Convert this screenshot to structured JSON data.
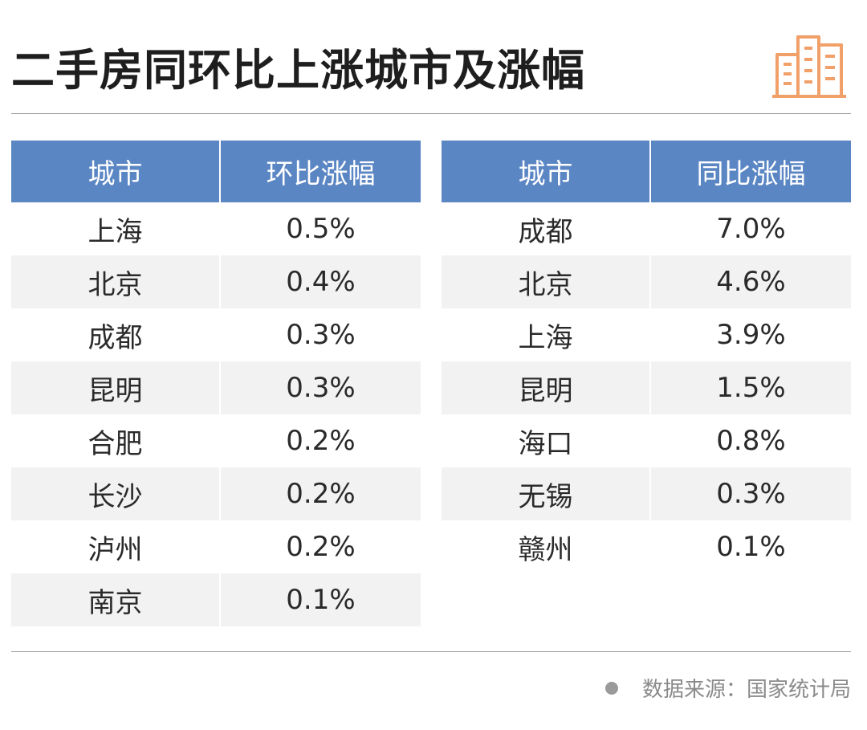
{
  "title": "二手房同环比上涨城市及涨幅",
  "icon": "building-icon",
  "accent_color": "#5b86c4",
  "icon_color": "#f0a068",
  "source": "数据来源：国家统计局",
  "chart_data": [
    {
      "type": "table",
      "columns": [
        "城市",
        "环比涨幅"
      ],
      "rows": [
        [
          "上海",
          "0.5%"
        ],
        [
          "北京",
          "0.4%"
        ],
        [
          "成都",
          "0.3%"
        ],
        [
          "昆明",
          "0.3%"
        ],
        [
          "合肥",
          "0.2%"
        ],
        [
          "长沙",
          "0.2%"
        ],
        [
          "泸州",
          "0.2%"
        ],
        [
          "南京",
          "0.1%"
        ]
      ]
    },
    {
      "type": "table",
      "columns": [
        "城市",
        "同比涨幅"
      ],
      "rows": [
        [
          "成都",
          "7.0%"
        ],
        [
          "北京",
          "4.6%"
        ],
        [
          "上海",
          "3.9%"
        ],
        [
          "昆明",
          "1.5%"
        ],
        [
          "海口",
          "0.8%"
        ],
        [
          "无锡",
          "0.3%"
        ],
        [
          "赣州",
          "0.1%"
        ]
      ]
    }
  ]
}
